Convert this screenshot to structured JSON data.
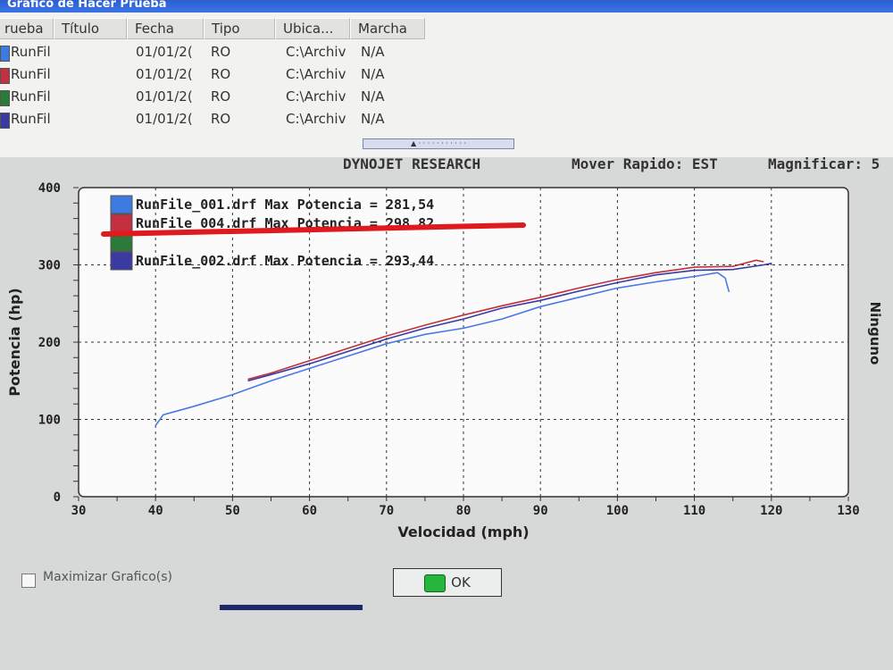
{
  "window": {
    "title": "Grafico de Hacer Prueba"
  },
  "list": {
    "headers": [
      "rueba",
      "Título",
      "Fecha",
      "Tipo",
      "Ubica...",
      "Marcha"
    ],
    "rows": [
      {
        "color": "#3d7be0",
        "prueba": "RunFil",
        "fecha": "01/01/2(",
        "tipo": "RO",
        "ubica": "C:\\Archiv",
        "marcha": "N/A"
      },
      {
        "color": "#c43040",
        "prueba": "RunFil",
        "fecha": "01/01/2(",
        "tipo": "RO",
        "ubica": "C:\\Archiv",
        "marcha": "N/A"
      },
      {
        "color": "#2a7a3a",
        "prueba": "RunFil",
        "fecha": "01/01/2(",
        "tipo": "RO",
        "ubica": "C:\\Archiv",
        "marcha": "N/A"
      },
      {
        "color": "#3a3aa0",
        "prueba": "RunFil",
        "fecha": "01/01/2(",
        "tipo": "RO",
        "ubica": "C:\\Archiv",
        "marcha": "N/A"
      }
    ]
  },
  "toolbar": {
    "brand": "DYNOJET RESEARCH",
    "mover": "Mover Rapido: EST",
    "magnificar": "Magnificar: 5"
  },
  "footer": {
    "maximizar_label": "Maximizar Grafico(s)",
    "ok_label": "OK"
  },
  "chart_data": {
    "type": "line",
    "xlabel": "Velocidad (mph)",
    "ylabel": "Potencia (hp)",
    "right_label": "Ninguno",
    "xlim": [
      30,
      130
    ],
    "ylim": [
      0,
      400
    ],
    "x_ticks": [
      30,
      40,
      50,
      60,
      70,
      80,
      90,
      100,
      110,
      120,
      130
    ],
    "y_ticks": [
      0,
      100,
      200,
      300,
      400
    ],
    "grid": true,
    "legend_position": "top-left",
    "legend": [
      {
        "text": "RunFile_001.drf Max Potencia = 281,54",
        "color": "#3d7be0"
      },
      {
        "text": "RunFile_004.drf Max Potencia = 298,82",
        "color": "#c43040"
      },
      {
        "text": "",
        "color": "#2a7a3a"
      },
      {
        "text": "RunFile_002.drf Max Potencia = 293,44",
        "color": "#3a3aa0"
      }
    ],
    "series": [
      {
        "name": "RunFile_001.drf",
        "color": "#4a78e6",
        "x": [
          40,
          41,
          45,
          50,
          55,
          60,
          65,
          70,
          75,
          80,
          85,
          90,
          95,
          100,
          105,
          110,
          113,
          114,
          114.5
        ],
        "y": [
          92,
          106,
          117,
          132,
          150,
          166,
          182,
          198,
          210,
          218,
          230,
          246,
          258,
          270,
          278,
          285,
          290,
          283,
          265
        ]
      },
      {
        "name": "RunFile_004.drf",
        "color": "#c0303c",
        "x": [
          52,
          55,
          60,
          65,
          70,
          75,
          80,
          85,
          90,
          95,
          100,
          105,
          110,
          115,
          118,
          119
        ],
        "y": [
          152,
          160,
          176,
          192,
          208,
          222,
          235,
          247,
          258,
          270,
          281,
          290,
          297,
          298,
          306,
          304
        ]
      },
      {
        "name": "RunFile_002.drf",
        "color": "#3a3aa0",
        "x": [
          52,
          55,
          60,
          65,
          70,
          75,
          80,
          85,
          90,
          95,
          100,
          105,
          110,
          115,
          119,
          120
        ],
        "y": [
          150,
          158,
          172,
          188,
          204,
          218,
          230,
          244,
          254,
          266,
          277,
          287,
          293,
          294,
          300,
          302
        ]
      }
    ]
  }
}
